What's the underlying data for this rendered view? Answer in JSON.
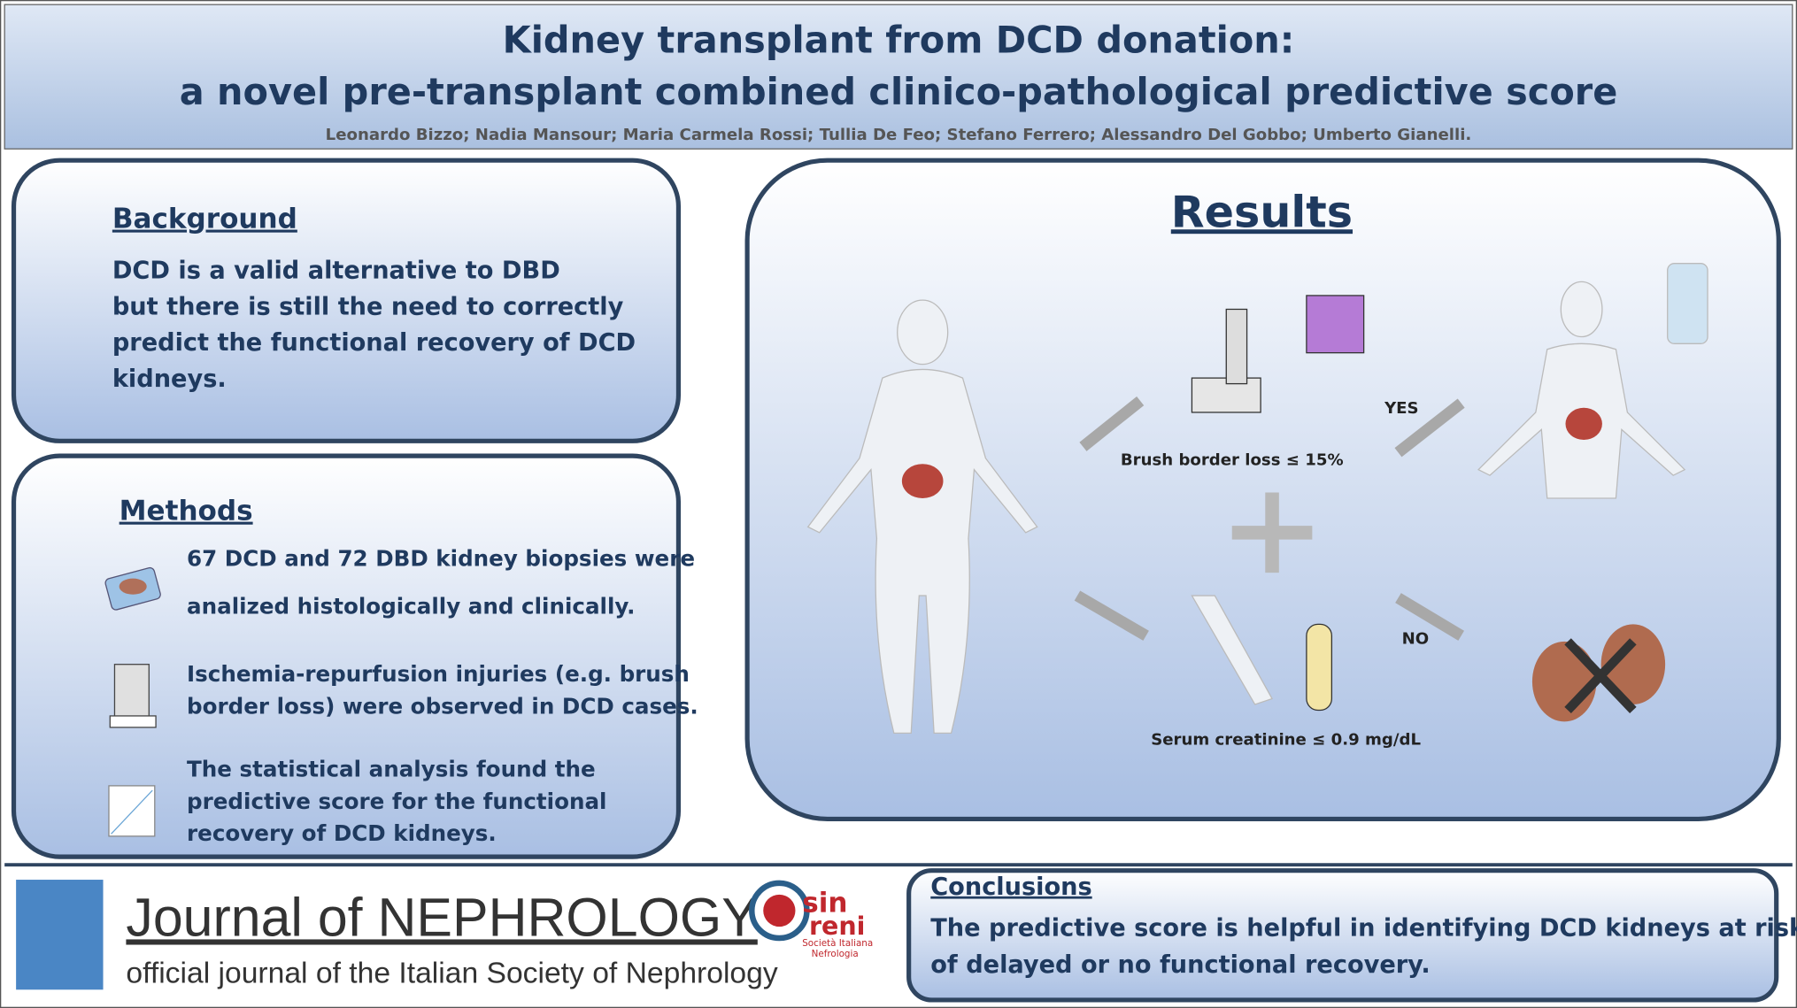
{
  "header": {
    "title_line1": "Kidney transplant from DCD donation:",
    "title_line2": "a novel pre-transplant combined clinico-pathological predictive score",
    "authors": "Leonardo Bizzo; Nadia Mansour; Maria Carmela Rossi; Tullia De Feo; Stefano Ferrero; Alessandro Del Gobbo; Umberto Gianelli."
  },
  "background": {
    "heading": "Background",
    "lines": [
      "DCD is a valid alternative to DBD",
      "but there is still the need to correctly",
      "predict the functional  recovery of DCD",
      "kidneys."
    ]
  },
  "methods": {
    "heading": "Methods",
    "items": [
      [
        "67 DCD and 72 DBD kidney biopsies were",
        "analized histologically and clinically."
      ],
      [
        "Ischemia-repurfusion injuries (e.g. brush",
        "border loss) were observed in DCD cases."
      ],
      [
        "The statistical analysis found the",
        "predictive score for the functional",
        "recovery of DCD kidneys."
      ]
    ]
  },
  "results": {
    "heading": "Results",
    "brush_label": "Brush border loss ≤ 15%",
    "yes_label": "YES",
    "no_label": "NO",
    "serum_label": "Serum creatinine ≤ 0.9 mg/dL"
  },
  "conclusions": {
    "heading": "Conclusions",
    "lines": [
      "The predictive score is helpful in identifying DCD kidneys at risk",
      "of delayed or no functional  recovery."
    ]
  },
  "footer": {
    "journal_name": "Journal of NEPHROLOGY",
    "journal_subtitle": "official journal of the Italian Society of Nephrology",
    "logo_sin": "sin",
    "logo_reni": "reni",
    "logo_society": "Società Italiana",
    "logo_nefrologia": "Nefrologia"
  }
}
